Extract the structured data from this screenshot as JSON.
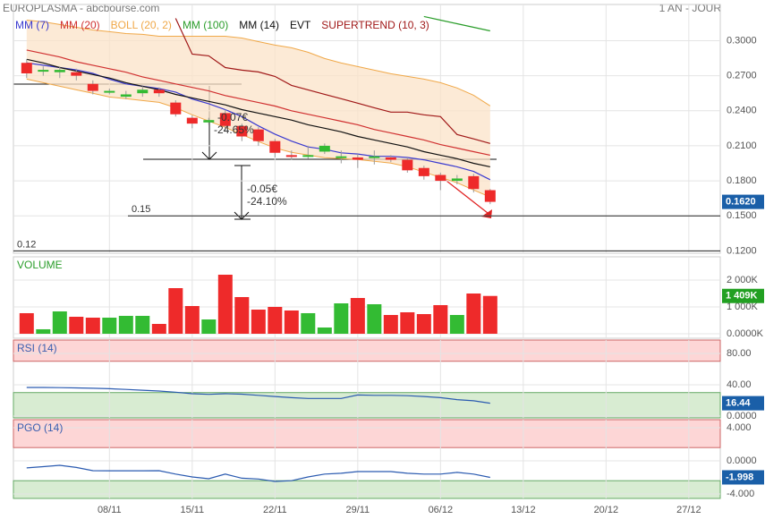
{
  "chart_data": [
    {
      "type": "candlestick",
      "title": "EUROPLASMA - abcbourse.com",
      "subtitle": "1 AN - JOUR",
      "x": [
        0,
        1,
        2,
        3,
        4,
        5,
        6,
        7,
        8,
        9,
        10,
        11,
        12,
        13,
        14,
        15,
        16,
        17,
        18,
        19,
        20,
        21,
        22,
        23,
        24,
        25,
        26,
        27,
        28
      ],
      "open": [
        0.281,
        0.274,
        0.273,
        0.273,
        0.263,
        0.256,
        0.252,
        0.255,
        0.258,
        0.247,
        0.234,
        0.23,
        0.238,
        0.227,
        0.224,
        0.214,
        0.202,
        0.201,
        0.205,
        0.201,
        0.2,
        0.201,
        0.2,
        0.198,
        0.191,
        0.185,
        0.18,
        0.184,
        0.172
      ],
      "close": [
        0.272,
        0.275,
        0.275,
        0.27,
        0.257,
        0.257,
        0.254,
        0.258,
        0.255,
        0.237,
        0.229,
        0.232,
        0.227,
        0.218,
        0.214,
        0.204,
        0.201,
        0.202,
        0.21,
        0.201,
        0.198,
        0.201,
        0.198,
        0.189,
        0.184,
        0.18,
        0.182,
        0.173,
        0.162
      ],
      "high": [
        0.284,
        0.278,
        0.278,
        0.276,
        0.266,
        0.259,
        0.257,
        0.261,
        0.26,
        0.249,
        0.236,
        0.234,
        0.241,
        0.229,
        0.226,
        0.216,
        0.206,
        0.21,
        0.212,
        0.206,
        0.203,
        0.206,
        0.202,
        0.2,
        0.193,
        0.187,
        0.185,
        0.186,
        0.173
      ],
      "low": [
        0.268,
        0.27,
        0.268,
        0.266,
        0.254,
        0.254,
        0.25,
        0.252,
        0.252,
        0.235,
        0.225,
        0.228,
        0.222,
        0.214,
        0.21,
        0.2,
        0.198,
        0.199,
        0.203,
        0.195,
        0.191,
        0.194,
        0.196,
        0.187,
        0.181,
        0.172,
        0.177,
        0.17,
        0.16
      ],
      "close_label": "0.1620",
      "series": [
        {
          "name": "MM (7)",
          "color": "#3a3ad0",
          "values": [
            0.281,
            0.279,
            0.277,
            0.275,
            0.272,
            0.267,
            0.263,
            0.261,
            0.259,
            0.256,
            0.25,
            0.246,
            0.241,
            0.235,
            0.227,
            0.22,
            0.214,
            0.209,
            0.207,
            0.204,
            0.203,
            0.201,
            0.201,
            0.2,
            0.198,
            0.195,
            0.192,
            0.188,
            0.181
          ]
        },
        {
          "name": "MM (20)",
          "color": "#d03030",
          "values": [
            0.292,
            0.289,
            0.286,
            0.282,
            0.279,
            0.276,
            0.273,
            0.269,
            0.266,
            0.263,
            0.26,
            0.257,
            0.253,
            0.25,
            0.247,
            0.244,
            0.24,
            0.237,
            0.234,
            0.231,
            0.228,
            0.224,
            0.221,
            0.218,
            0.215,
            0.211,
            0.208,
            0.205,
            0.202
          ]
        },
        {
          "name": "BOLL (20, 2)",
          "color": "#f0a848",
          "upper": [
            0.3176,
            0.3161,
            0.3138,
            0.3115,
            0.3092,
            0.3077,
            0.3061,
            0.3054,
            0.3038,
            0.3038,
            0.3038,
            0.3038,
            0.3038,
            0.3023,
            0.2992,
            0.2962,
            0.2939,
            0.2901,
            0.2847,
            0.2809,
            0.2778,
            0.2748,
            0.2717,
            0.2694,
            0.2671,
            0.264,
            0.2595,
            0.2533,
            0.2442
          ],
          "lower": [
            0.2671,
            0.264,
            0.261,
            0.2579,
            0.2549,
            0.2518,
            0.2503,
            0.2487,
            0.2472,
            0.2426,
            0.2365,
            0.2312,
            0.2258,
            0.2197,
            0.2136,
            0.2082,
            0.2044,
            0.2021,
            0.1998,
            0.199,
            0.1983,
            0.1967,
            0.1952,
            0.1921,
            0.1875,
            0.183,
            0.1784,
            0.1722,
            0.1661
          ]
        },
        {
          "name": "MM (100)",
          "color": "#2a9d2a",
          "values": [
            null,
            null,
            null,
            null,
            null,
            null,
            null,
            null,
            null,
            null,
            null,
            null,
            null,
            null,
            null,
            null,
            null,
            null,
            null,
            null,
            null,
            null,
            null,
            null,
            0.3207,
            0.3176,
            0.3145,
            0.3115,
            0.3084
          ]
        },
        {
          "name": "MM (14)",
          "color": "#111111",
          "values": [
            0.284,
            0.281,
            0.277,
            0.274,
            0.271,
            0.268,
            0.264,
            0.261,
            0.258,
            0.254,
            0.251,
            0.248,
            0.245,
            0.241,
            0.238,
            0.235,
            0.232,
            0.228,
            0.225,
            0.222,
            0.218,
            0.215,
            0.212,
            0.209,
            0.205,
            0.202,
            0.199,
            0.195,
            0.192
          ]
        },
        {
          "name": "EVT",
          "color": "#111111"
        },
        {
          "name": "SUPERTREND (10, 3)",
          "color": "#a01818",
          "values": [
            null,
            null,
            null,
            null,
            null,
            null,
            null,
            null,
            null,
            0.3191,
            0.2885,
            0.287,
            0.277,
            0.2748,
            0.2732,
            0.2694,
            0.2617,
            0.2579,
            0.2541,
            0.2503,
            0.2465,
            0.2426,
            0.2388,
            0.2388,
            0.2365,
            0.235,
            0.2197,
            0.2159,
            0.212
          ]
        }
      ],
      "hlines": [
        0.15,
        0.12
      ],
      "annotations": [
        "-0.07€",
        "-24.65%",
        "-0.05€",
        "-24.10%"
      ],
      "xlim": [
        -0.8,
        41.9
      ],
      "xticks": [
        {
          "value": 5,
          "label": "08/11"
        },
        {
          "value": 10,
          "label": "15/11"
        },
        {
          "value": 15,
          "label": "22/11"
        },
        {
          "value": 20,
          "label": "29/11"
        },
        {
          "value": 25,
          "label": "06/12"
        },
        {
          "value": 30,
          "label": "13/12"
        },
        {
          "value": 35,
          "label": "20/12"
        },
        {
          "value": 40,
          "label": "27/12"
        }
      ],
      "ylim": [
        0.118,
        0.331
      ],
      "yticks": [
        {
          "value": 0.3,
          "label": "0.3000"
        },
        {
          "value": 0.27,
          "label": "0.2700"
        },
        {
          "value": 0.24,
          "label": "0.2400"
        },
        {
          "value": 0.21,
          "label": "0.2100"
        },
        {
          "value": 0.18,
          "label": "0.1800"
        },
        {
          "value": 0.15,
          "label": "0.1500"
        },
        {
          "value": 0.12,
          "label": "0.1200"
        }
      ],
      "grid": true
    },
    {
      "type": "bar",
      "title": "VOLUME",
      "title_color": "#2a9d2a",
      "values": [
        767,
        167,
        833,
        633,
        600,
        600,
        667,
        667,
        367,
        1700,
        1033,
        533,
        2200,
        1367,
        900,
        1000,
        867,
        767,
        233,
        1133,
        1333,
        1100,
        700,
        800,
        733,
        1067,
        700,
        1500,
        1409
      ],
      "last_label": "1 409K",
      "ylim": [
        -167,
        2867
      ],
      "yticks": [
        {
          "value": 2000,
          "label": "2 000K"
        },
        {
          "value": 1000,
          "label": "1 000K"
        },
        {
          "value": 0,
          "label": "0.0000K"
        }
      ]
    },
    {
      "type": "line",
      "title": "RSI (14)",
      "title_color": "#3a5fb0",
      "color": "#2a5ab0",
      "values": [
        36.6,
        36.6,
        36.3,
        36,
        35.5,
        35,
        34,
        33,
        32,
        30.5,
        28.5,
        27.8,
        28.5,
        28,
        26.5,
        25,
        23.5,
        22.5,
        22.5,
        22.5,
        27,
        26.5,
        26.5,
        26,
        25,
        23.5,
        21,
        19.5,
        16.44
      ],
      "last_label": "16.44",
      "bands": [
        70,
        30
      ],
      "ylim": [
        -2.3,
        97.1
      ],
      "yticks": [
        {
          "value": 80,
          "label": "80.00"
        },
        {
          "value": 40,
          "label": "40.00"
        },
        {
          "value": 0,
          "label": "0.0000"
        }
      ]
    },
    {
      "type": "line",
      "title": "PGO (14)",
      "title_color": "#3a5fb0",
      "color": "#2a5ab0",
      "values": [
        -0.86,
        -0.7,
        -0.54,
        -0.8,
        -1.19,
        -1.2,
        -1.2,
        -1.2,
        -1.19,
        -1.6,
        -1.95,
        -2.16,
        -1.6,
        -2.1,
        -2.2,
        -2.49,
        -2.4,
        -1.95,
        -1.6,
        -1.5,
        -1.3,
        -1.3,
        -1.3,
        -1.5,
        -1.6,
        -1.6,
        -1.4,
        -1.6,
        -1.998
      ],
      "last_label": "-1.998",
      "bands": [
        1.6,
        -2.4
      ],
      "ylim": [
        -4.54,
        4.97
      ],
      "yticks": [
        {
          "value": 4,
          "label": "4.000"
        },
        {
          "value": 0,
          "label": "0.0000"
        },
        {
          "value": -4,
          "label": "-4.000"
        }
      ]
    }
  ]
}
